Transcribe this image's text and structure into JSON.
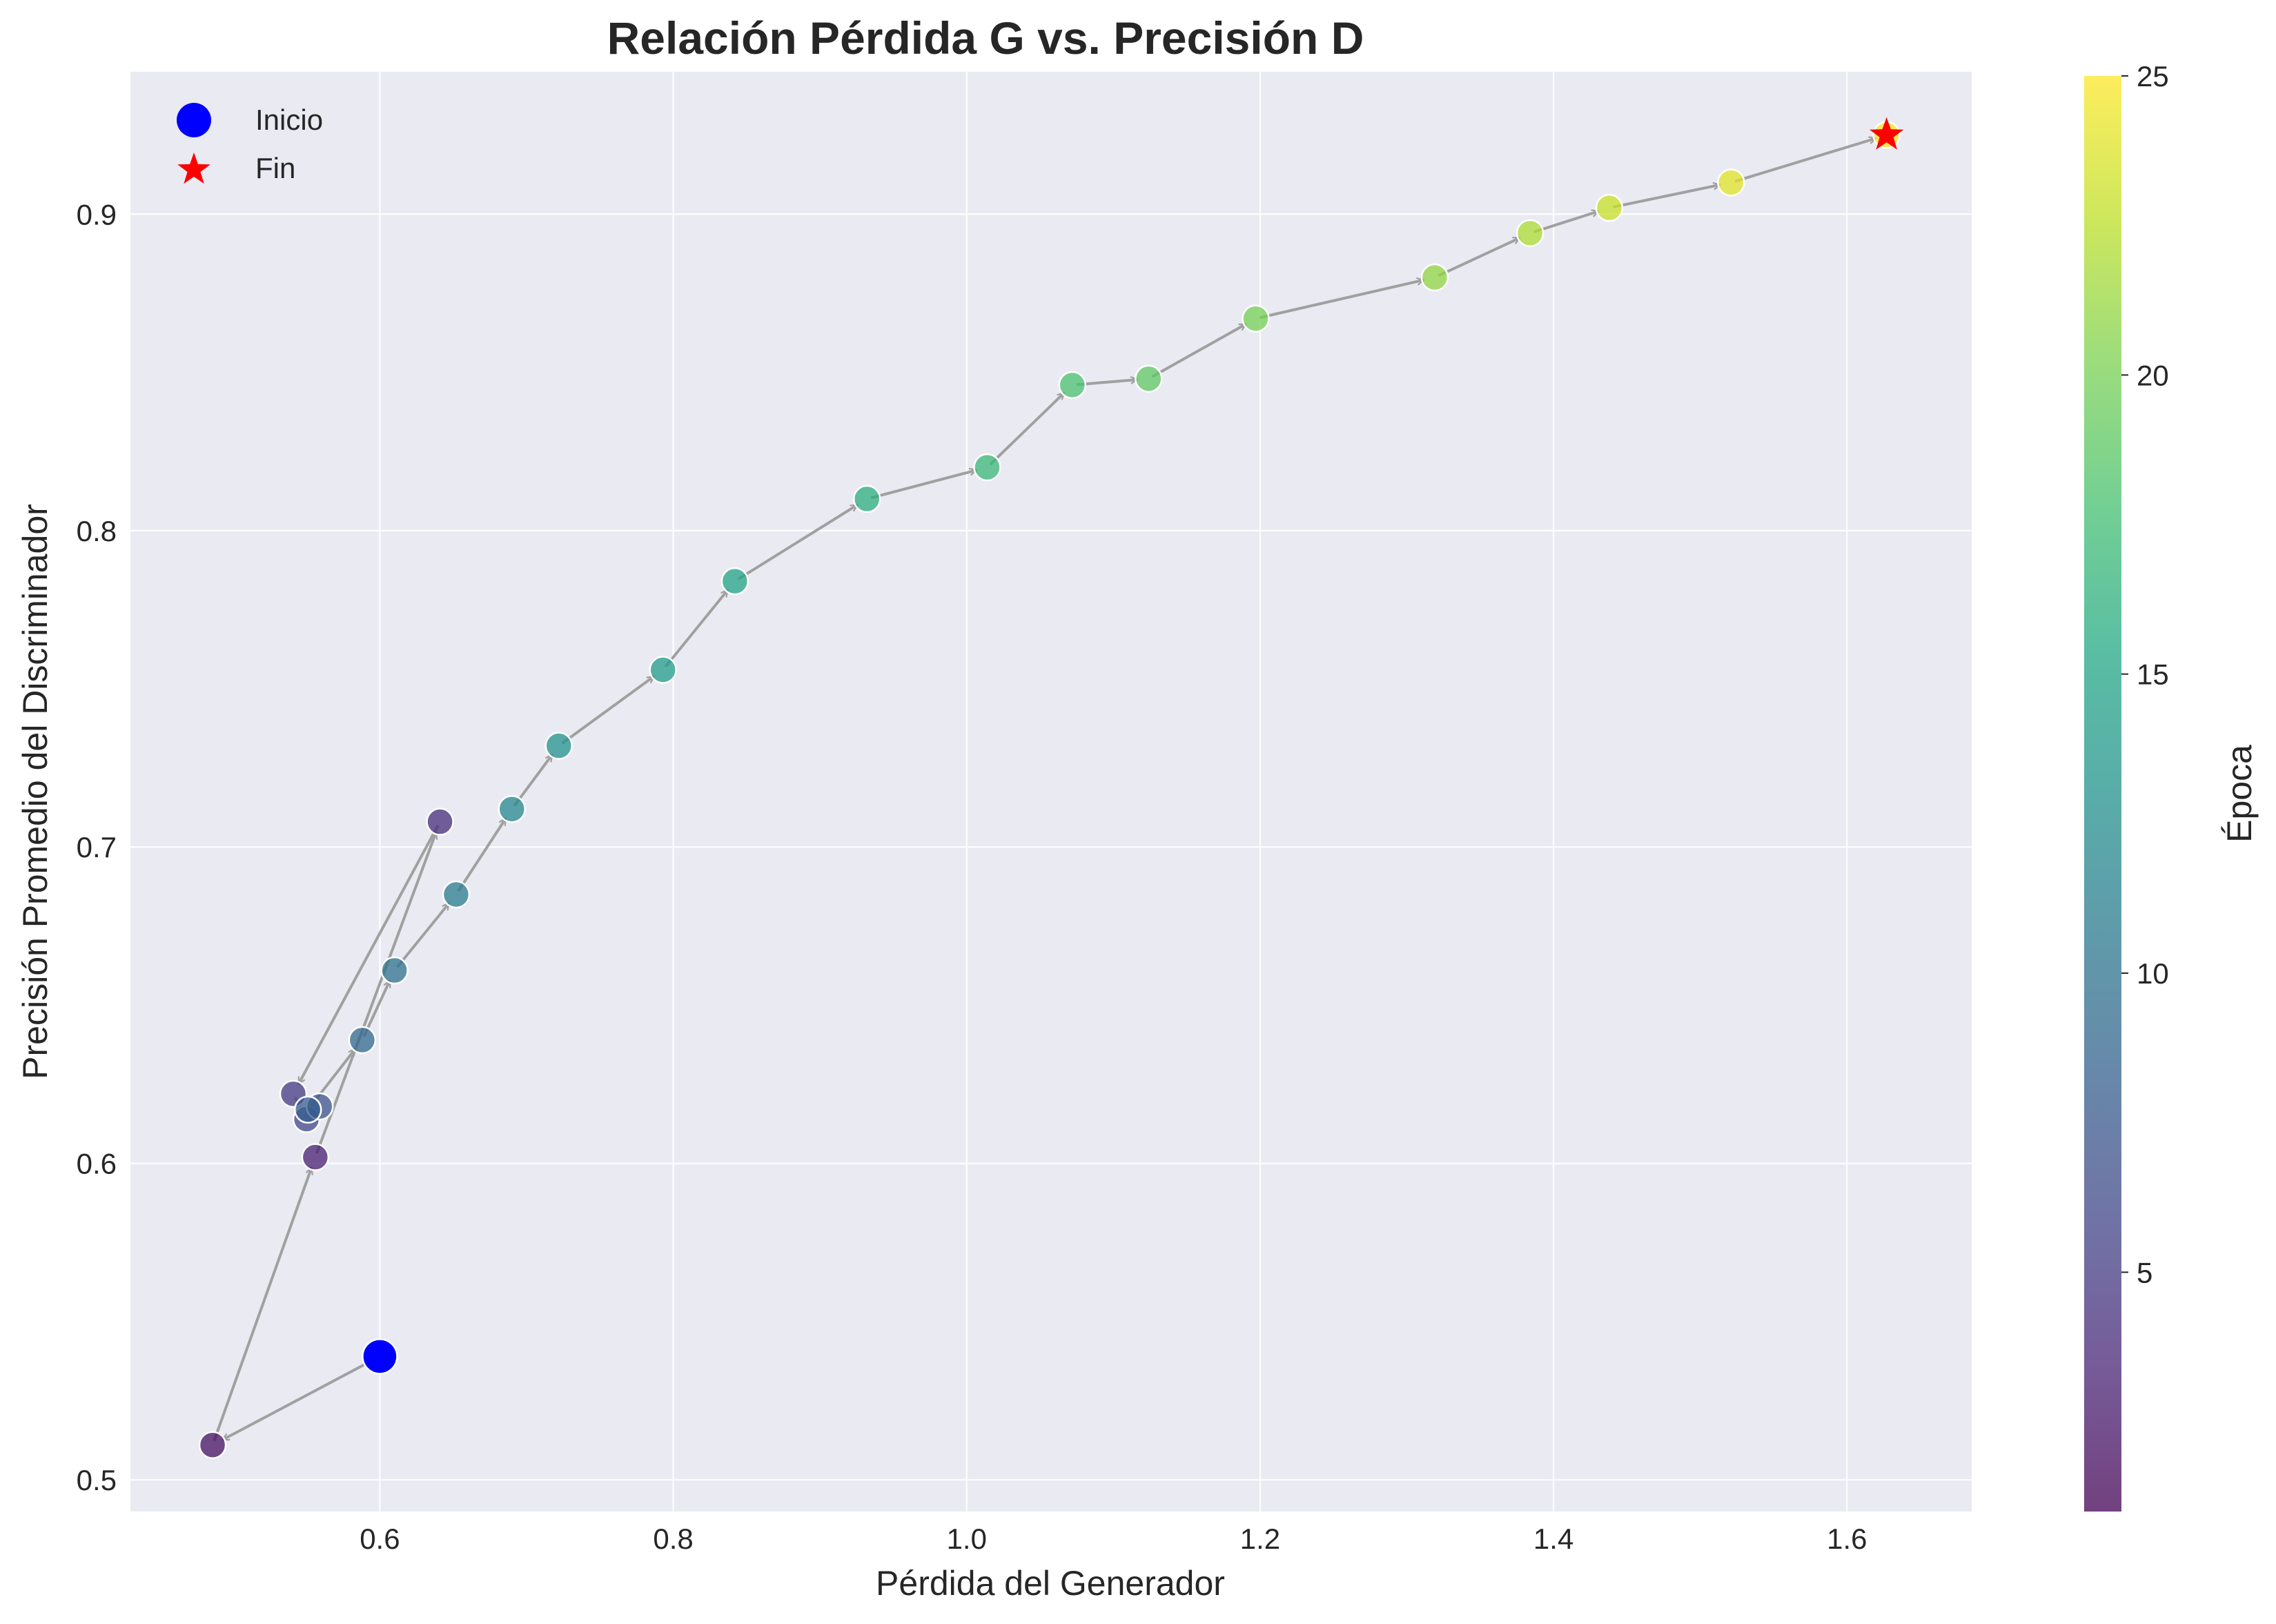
{
  "chart_data": {
    "type": "scatter",
    "title": "Relación Pérdida G vs. Precisión D",
    "xlabel": "Pérdida del Generador",
    "ylabel": "Precisión Promedio del Discriminador",
    "xlim": [
      0.43,
      1.685
    ],
    "ylim": [
      0.49,
      0.945
    ],
    "xticks": [
      0.6,
      0.8,
      1.0,
      1.2,
      1.4,
      1.6
    ],
    "xtick_labels": [
      "0.6",
      "0.8",
      "1.0",
      "1.2",
      "1.4",
      "1.6"
    ],
    "yticks": [
      0.5,
      0.6,
      0.7,
      0.8,
      0.9
    ],
    "ytick_labels": [
      "0.5",
      "0.6",
      "0.7",
      "0.8",
      "0.9"
    ],
    "grid": true,
    "legend_position": "top-left",
    "legend": [
      {
        "label": "Inicio",
        "marker": "circle",
        "color": "#0000ff"
      },
      {
        "label": "Fin",
        "marker": "star",
        "color": "#ff0000"
      }
    ],
    "colorbar": {
      "label": "Época",
      "colormap": "viridis",
      "range": [
        1,
        25
      ],
      "ticks": [
        5,
        10,
        15,
        20,
        25
      ],
      "tick_labels": [
        "5",
        "10",
        "15",
        "20",
        "25"
      ]
    },
    "series": [
      {
        "epoch": [
          1,
          2,
          3,
          4,
          5,
          6,
          7,
          8,
          9,
          10,
          11,
          12,
          13,
          14,
          15,
          16,
          17,
          18,
          19,
          20,
          21,
          22,
          23,
          24,
          25
        ],
        "x": [
          0.6,
          0.486,
          0.556,
          0.641,
          0.541,
          0.55,
          0.559,
          0.551,
          0.588,
          0.61,
          0.652,
          0.69,
          0.722,
          0.793,
          0.842,
          0.932,
          1.014,
          1.072,
          1.124,
          1.197,
          1.319,
          1.384,
          1.438,
          1.521,
          1.627
        ],
        "y": [
          0.539,
          0.511,
          0.602,
          0.708,
          0.622,
          0.614,
          0.618,
          0.617,
          0.639,
          0.661,
          0.685,
          0.712,
          0.732,
          0.756,
          0.784,
          0.81,
          0.82,
          0.846,
          0.848,
          0.867,
          0.88,
          0.894,
          0.902,
          0.91,
          0.925
        ]
      }
    ],
    "colors": {
      "plot_background": "#eaeaf2",
      "grid": "#ffffff",
      "arrow": "#a0a0a0",
      "start_marker": "#0000ff",
      "end_marker": "#ff0000"
    }
  }
}
